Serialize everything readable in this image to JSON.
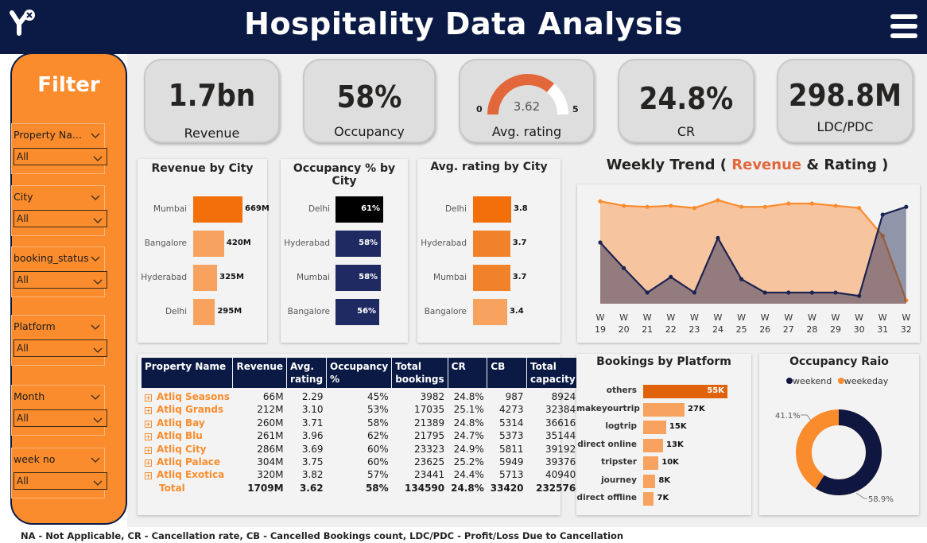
{
  "header": {
    "title": "Hospitality Data Analysis"
  },
  "filter": {
    "title": "Filter",
    "slicers": [
      {
        "label": "Property Na...",
        "value": "All"
      },
      {
        "label": "City",
        "value": "All"
      },
      {
        "label": "booking_status",
        "value": "All"
      },
      {
        "label": "Platform",
        "value": "All"
      },
      {
        "label": "Month",
        "value": "All"
      },
      {
        "label": "week no",
        "value": "All"
      }
    ]
  },
  "kpis": {
    "revenue": {
      "value": "1.7bn",
      "label": "Revenue"
    },
    "occupancy": {
      "value": "58%",
      "label": "Occupancy"
    },
    "rating": {
      "value": "3.62",
      "label": "Avg. rating",
      "min": "0",
      "max": "5",
      "level": 0.724
    },
    "cr": {
      "value": "24.8%",
      "label": "CR"
    },
    "ldc": {
      "value": "298.8M",
      "label": "LDC/PDC"
    }
  },
  "revenue_by_city": {
    "title": "Revenue by City",
    "rows": [
      {
        "city": "Mumbai",
        "label": "669M",
        "value": 669,
        "color": "#f26f0a"
      },
      {
        "city": "Bangalore",
        "label": "420M",
        "value": 420,
        "color": "#f7a35f"
      },
      {
        "city": "Hyderabad",
        "label": "325M",
        "value": 325,
        "color": "#f7a35f"
      },
      {
        "city": "Delhi",
        "label": "295M",
        "value": 295,
        "color": "#f7a35f"
      }
    ]
  },
  "occupancy_by_city": {
    "title": "Occupancy % by City",
    "rows": [
      {
        "city": "Delhi",
        "label": "61%",
        "value": 61,
        "color": "#000000"
      },
      {
        "city": "Hyderabad",
        "label": "58%",
        "value": 58,
        "color": "#1f2a63"
      },
      {
        "city": "Mumbai",
        "label": "58%",
        "value": 58,
        "color": "#1f2a63"
      },
      {
        "city": "Bangalore",
        "label": "56%",
        "value": 56,
        "color": "#1f2a63"
      }
    ]
  },
  "rating_by_city": {
    "title": "Avg. rating by City",
    "rows": [
      {
        "city": "Delhi",
        "label": "3.8",
        "value": 3.8,
        "color": "#f26f0a"
      },
      {
        "city": "Hyderabad",
        "label": "3.7",
        "value": 3.7,
        "color": "#f0832a"
      },
      {
        "city": "Mumbai",
        "label": "3.7",
        "value": 3.7,
        "color": "#f0832a"
      },
      {
        "city": "Bangalore",
        "label": "3.4",
        "value": 3.4,
        "color": "#f7a35f"
      }
    ]
  },
  "weekly_trend": {
    "title_prefix": "Weekly Trend (",
    "title_revenue": "Revenue",
    "title_amp": "&",
    "title_rating": "Rating",
    "title_suffix": ")",
    "x_top": [
      "W",
      "W",
      "W",
      "W",
      "W",
      "W",
      "W",
      "W",
      "W",
      "W",
      "W",
      "W",
      "W",
      "W"
    ],
    "x_bottom": [
      "19",
      "20",
      "21",
      "22",
      "23",
      "24",
      "25",
      "26",
      "27",
      "28",
      "29",
      "30",
      "31",
      "32"
    ],
    "colors": {
      "revenue": "#f7c4a0",
      "revenue_line": "#fb8c2d",
      "rating": "#1b2352"
    }
  },
  "chart_data": [
    {
      "type": "line",
      "title": "Weekly Trend ( Revenue & Rating )",
      "x": [
        "W 19",
        "W 20",
        "W 21",
        "W 22",
        "W 23",
        "W 24",
        "W 25",
        "W 26",
        "W 27",
        "W 28",
        "W 29",
        "W 30",
        "W 31",
        "W 32"
      ],
      "series": [
        {
          "name": "Revenue",
          "values": [
            0.92,
            0.88,
            0.87,
            0.88,
            0.86,
            0.93,
            0.87,
            0.87,
            0.9,
            0.9,
            0.88,
            0.86,
            0.61,
            0.03
          ]
        },
        {
          "name": "Rating",
          "values": [
            0.55,
            0.32,
            0.1,
            0.24,
            0.1,
            0.59,
            0.22,
            0.1,
            0.1,
            0.1,
            0.1,
            0.07,
            0.8,
            0.87
          ]
        }
      ]
    }
  ],
  "bookings_by_platform": {
    "title": "Bookings by Platform",
    "rows": [
      {
        "platform": "others",
        "label": "55K",
        "value": 55,
        "color": "#e0630c"
      },
      {
        "platform": "makeyourtrip",
        "label": "27K",
        "value": 27,
        "color": "#f7a35f"
      },
      {
        "platform": "logtrip",
        "label": "15K",
        "value": 15,
        "color": "#f7a35f"
      },
      {
        "platform": "direct online",
        "label": "13K",
        "value": 13,
        "color": "#f7a35f"
      },
      {
        "platform": "tripster",
        "label": "10K",
        "value": 10,
        "color": "#f7a35f"
      },
      {
        "platform": "journey",
        "label": "8K",
        "value": 8,
        "color": "#f7a35f"
      },
      {
        "platform": "direct offline",
        "label": "7K",
        "value": 7,
        "color": "#f7a35f"
      }
    ]
  },
  "occupancy_ratio": {
    "title": "Occupancy Raio",
    "legend_weekend": "weekend",
    "legend_weekday": "weekeday",
    "weekend_pct": 58.9,
    "weekday_pct": 41.1,
    "weekend_label": "58.9%",
    "weekday_label": "41.1%",
    "colors": {
      "weekend": "#0f1640",
      "weekday": "#fb8c2d"
    }
  },
  "property_table": {
    "headers": [
      "Property Name",
      "Revenue",
      "Avg. rating",
      "Occupancy %",
      "Total bookings",
      "CR",
      "CB",
      "Total capacity"
    ],
    "rows": [
      [
        "Atliq Seasons",
        "66M",
        "2.29",
        "45%",
        "3982",
        "24.8%",
        "987",
        "8924"
      ],
      [
        "Atliq Grands",
        "212M",
        "3.10",
        "53%",
        "17035",
        "25.1%",
        "4273",
        "32384"
      ],
      [
        "Atliq Bay",
        "260M",
        "3.71",
        "58%",
        "21389",
        "24.8%",
        "5314",
        "36616"
      ],
      [
        "Atliq Blu",
        "261M",
        "3.96",
        "62%",
        "21795",
        "24.7%",
        "5373",
        "35144"
      ],
      [
        "Atliq City",
        "286M",
        "3.69",
        "60%",
        "23323",
        "24.9%",
        "5811",
        "39192"
      ],
      [
        "Atliq Palace",
        "304M",
        "3.75",
        "60%",
        "23625",
        "25.2%",
        "5949",
        "39376"
      ],
      [
        "Atliq Exotica",
        "320M",
        "3.82",
        "57%",
        "23441",
        "24.4%",
        "5713",
        "40940"
      ]
    ],
    "total": [
      "Total",
      "1709M",
      "3.62",
      "58%",
      "134590",
      "24.8%",
      "33420",
      "232576"
    ]
  },
  "footer": {
    "note": "NA - Not Applicable, CR - Cancellation rate, CB - Cancelled Bookings count, LDC/PDC - Profit/Loss Due to Cancellation"
  }
}
